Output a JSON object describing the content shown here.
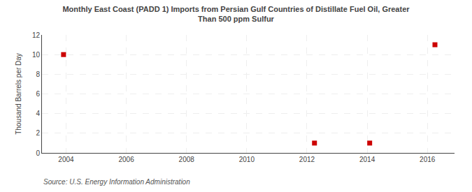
{
  "chart_data": {
    "type": "scatter",
    "title": "Monthly East Coast (PADD 1) Imports from Persian Gulf Countries of Distillate Fuel Oil, Greater\nThan 500 ppm Sulfur",
    "ylabel": "Thousand Barrels per Day",
    "annotations": [
      "Source: U.S. Energy Information Administration"
    ],
    "x": [
      2003.917,
      2012.25,
      2014.083,
      2016.25
    ],
    "values": [
      10.0,
      1.0,
      1.0,
      11.0
    ],
    "color": "#CC0000",
    "marker": "square",
    "xlim": [
      2003.2,
      2016.9
    ],
    "ylim": [
      0,
      12
    ],
    "xticks": [
      2004,
      2006,
      2008,
      2010,
      2012,
      2014,
      2016
    ],
    "yticks": [
      0,
      2,
      4,
      6,
      8,
      10,
      12
    ],
    "grid": true
  }
}
